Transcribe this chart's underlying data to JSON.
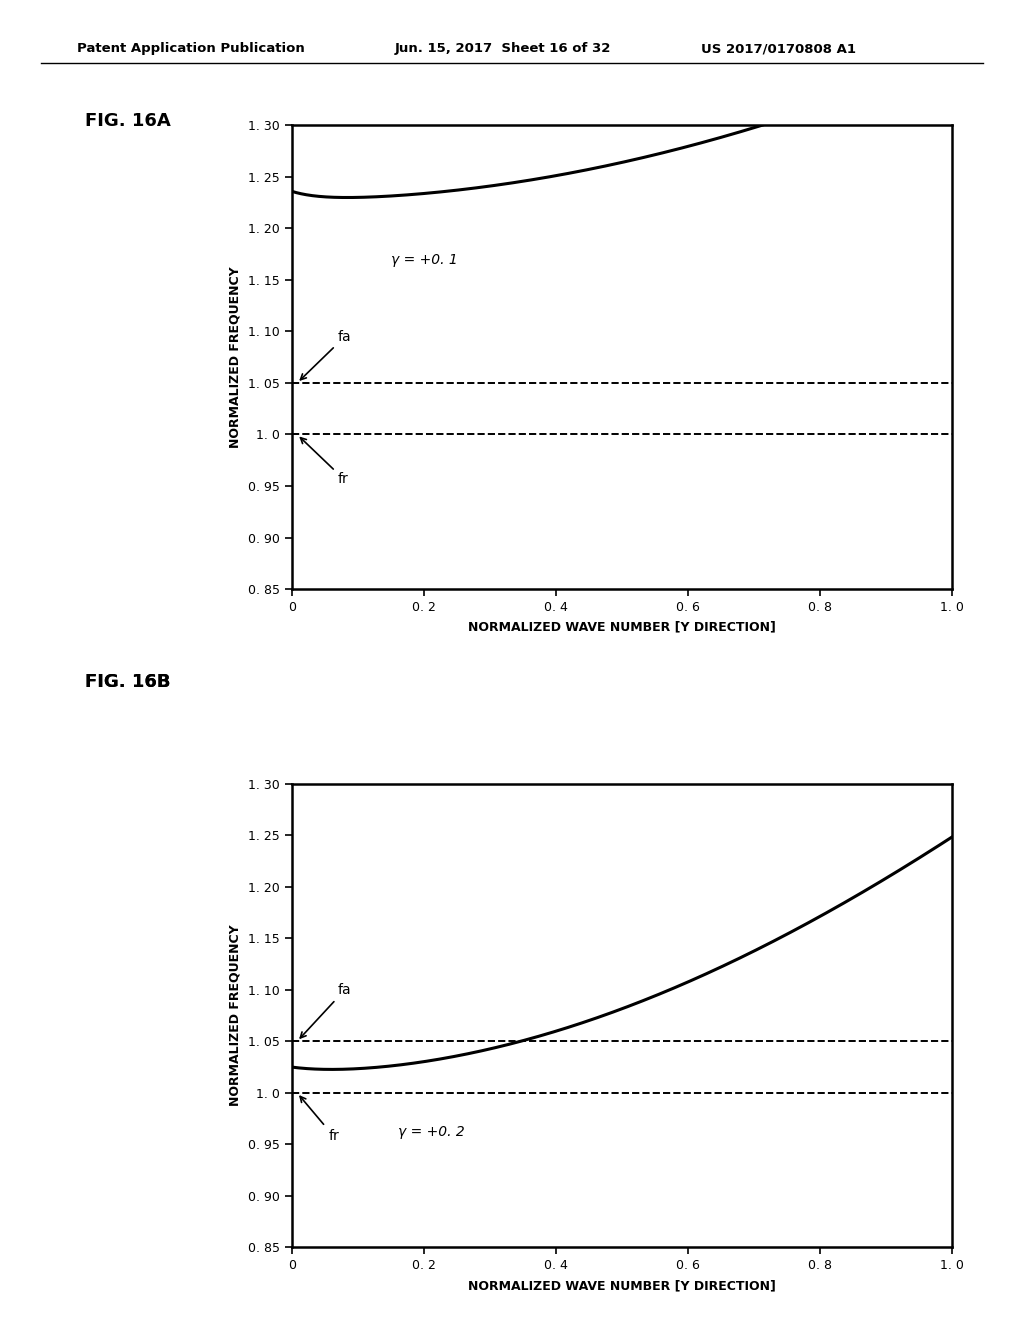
{
  "header_left": "Patent Application Publication",
  "header_mid": "Jun. 15, 2017  Sheet 16 of 32",
  "header_right": "US 2017/0170808 A1",
  "fig_label_A": "FIG. 16A",
  "fig_label_B": "FIG. 16B",
  "ylabel": "NORMALIZED FREQUENCY",
  "xlabel": "NORMALIZED WAVE NUMBER [Y DIRECTION]",
  "xlim": [
    0,
    1.0
  ],
  "ylim": [
    0.85,
    1.3
  ],
  "xticks": [
    0,
    0.2,
    0.4,
    0.6,
    0.8,
    1.0
  ],
  "yticks": [
    0.85,
    0.9,
    0.95,
    1.0,
    1.05,
    1.1,
    1.15,
    1.2,
    1.25,
    1.3
  ],
  "xtick_labels": [
    "0",
    "0. 2",
    "0. 4",
    "0. 6",
    "0. 8",
    "1. 0"
  ],
  "ytick_labels_A": [
    "0. 85",
    "0. 90",
    "0. 95",
    "1. 0",
    "1. 05",
    "1. 10",
    "1. 15",
    "1. 20",
    "1. 25",
    "1. 30"
  ],
  "ytick_labels_B": [
    "0. 85",
    "0. 90",
    "0. 95",
    "1. 0",
    "1. 05",
    "1. 10",
    "1. 15",
    "1. 20",
    "1. 25",
    "1. 30"
  ],
  "dashed_lines": [
    1.05,
    1.0
  ],
  "fa_label": "fa",
  "fr_label": "fr",
  "gamma_A_label": "γ = +0. 1",
  "gamma_B_label": "γ = +0. 2",
  "curve_color": "#000000",
  "dashed_color": "#000000",
  "bg_color": "#ffffff",
  "line_width": 2.2,
  "dashed_lw": 1.4
}
